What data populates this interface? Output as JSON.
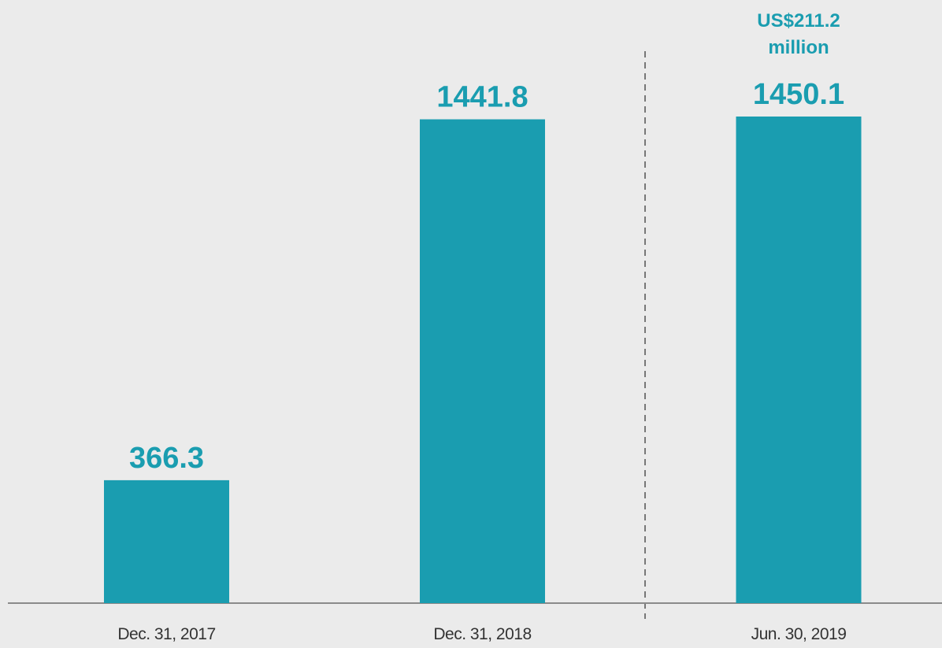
{
  "chart_data": {
    "type": "bar",
    "categories": [
      "Dec. 31, 2017",
      "Dec. 31, 2018",
      "Jun. 30, 2019"
    ],
    "values": [
      366.3,
      1441.8,
      1450.1
    ],
    "color": "#1a9db0",
    "annotation": "US$211.2 million"
  }
}
